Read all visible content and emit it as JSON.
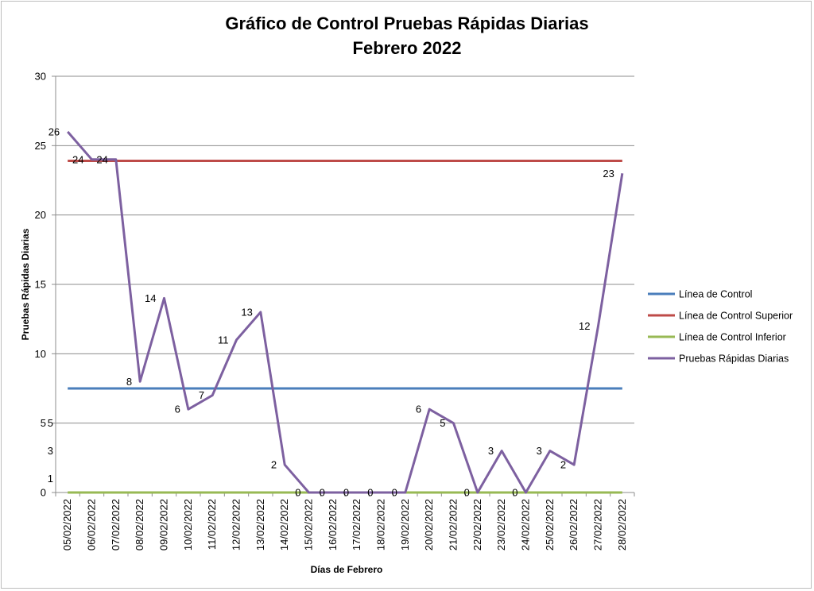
{
  "chart_data": {
    "type": "line",
    "title_line1": "Gráfico de Control Pruebas Rápidas Diarias",
    "title_line2": "Febrero 2022",
    "xlabel": "Días de Febrero",
    "ylabel": "Pruebas Rápidas Diarias",
    "ylim": [
      0,
      30
    ],
    "yticks": [
      0,
      5,
      10,
      15,
      20,
      25,
      30
    ],
    "grid": true,
    "legend_position": "right",
    "categories": [
      "05/02/2022",
      "06/02/2022",
      "07/02/2022",
      "08/02/2022",
      "09/02/2022",
      "10/02/2022",
      "11/02/2022",
      "12/02/2022",
      "13/02/2022",
      "14/02/2022",
      "15/02/2022",
      "16/02/2022",
      "17/02/2022",
      "18/02/2022",
      "19/02/2022",
      "20/02/2022",
      "21/02/2022",
      "22/02/2022",
      "23/02/2022",
      "24/02/2022",
      "25/02/2022",
      "26/02/2022",
      "27/02/2022",
      "28/02/2022"
    ],
    "series": [
      {
        "name": "Línea de Control",
        "color": "#4a7ebb",
        "constant": 7.5
      },
      {
        "name": "Línea de Control Superior",
        "color": "#be4b48",
        "constant": 23.9
      },
      {
        "name": "Línea de Control Inferior",
        "color": "#98b954",
        "constant": 0
      },
      {
        "name": "Pruebas Rápidas Diarias",
        "color": "#7d60a0",
        "values": [
          26,
          24,
          24,
          8,
          14,
          6,
          7,
          11,
          13,
          2,
          0,
          0,
          0,
          0,
          0,
          6,
          5,
          0,
          3,
          0,
          3,
          2,
          12,
          23
        ],
        "data_labels": [
          "26",
          "24",
          "24",
          "8",
          "14",
          "6",
          "7",
          "11",
          "13",
          "2",
          "0",
          "0",
          "0",
          "0",
          "0",
          "6",
          "5",
          "0",
          "3",
          "0",
          "3",
          "2",
          "12",
          "23"
        ]
      }
    ],
    "extra_labels": [
      "5",
      "3",
      "1"
    ]
  }
}
